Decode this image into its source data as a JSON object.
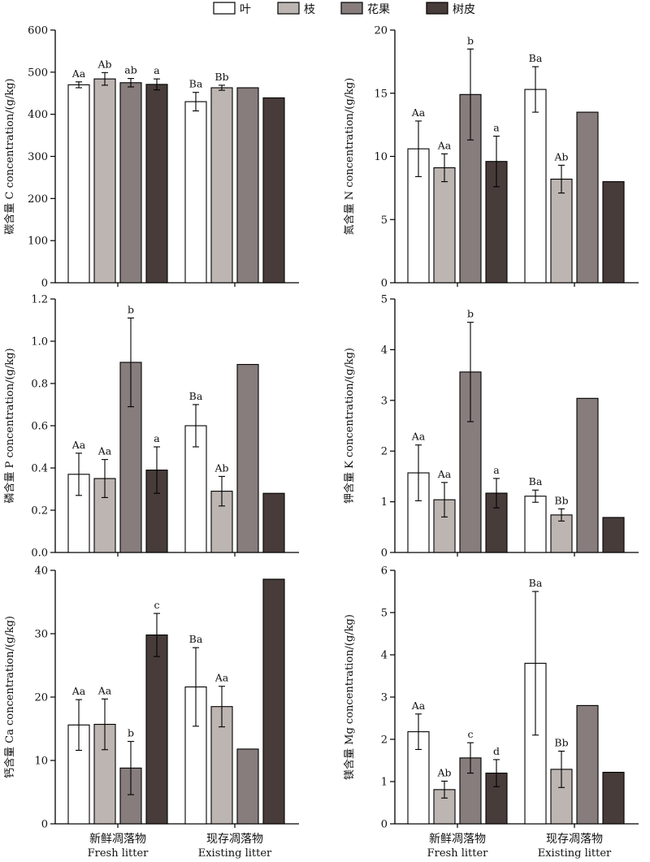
{
  "legend": [
    {
      "label": "叶",
      "color": "#ffffff"
    },
    {
      "label": "枝",
      "color": "#bdb5b1"
    },
    {
      "label": "花果",
      "color": "#867d7c"
    },
    {
      "label": "树皮",
      "color": "#473c3a"
    }
  ],
  "chart_data": [
    {
      "type": "bar",
      "ylabel": "碳含量 C concentration/(g/kg)",
      "ylim": [
        0,
        600
      ],
      "yticks": [
        "0",
        "100",
        "200",
        "300",
        "400",
        "500",
        "600"
      ],
      "categories": [
        {
          "cn": "新鲜凋落物",
          "en": "Fresh litter"
        },
        {
          "cn": "现存凋落物",
          "en": "Existing litter"
        }
      ],
      "series": [
        {
          "name": "叶",
          "values": [
            470,
            430
          ],
          "errors": [
            7,
            22
          ],
          "labels": [
            "Aa",
            "Ba"
          ]
        },
        {
          "name": "枝",
          "values": [
            484,
            463
          ],
          "errors": [
            15,
            6
          ],
          "labels": [
            "Ab",
            "Bb"
          ]
        },
        {
          "name": "花果",
          "values": [
            475,
            463
          ],
          "errors": [
            10,
            0
          ],
          "labels": [
            "ab",
            ""
          ]
        },
        {
          "name": "树皮",
          "values": [
            471,
            439
          ],
          "errors": [
            13,
            0
          ],
          "labels": [
            "a",
            ""
          ]
        }
      ]
    },
    {
      "type": "bar",
      "ylabel": "氮含量 N concentration/(g/kg)",
      "ylim": [
        0,
        20
      ],
      "yticks": [
        "0",
        "5",
        "10",
        "15",
        "20"
      ],
      "categories": [
        {
          "cn": "新鲜凋落物",
          "en": "Fresh litter"
        },
        {
          "cn": "现存凋落物",
          "en": "Existing litter"
        }
      ],
      "series": [
        {
          "name": "叶",
          "values": [
            10.6,
            15.3
          ],
          "errors": [
            2.2,
            1.8
          ],
          "labels": [
            "Aa",
            "Ba"
          ]
        },
        {
          "name": "枝",
          "values": [
            9.1,
            8.2
          ],
          "errors": [
            1.1,
            1.1
          ],
          "labels": [
            "Aa",
            "Ab"
          ]
        },
        {
          "name": "花果",
          "values": [
            14.9,
            13.5
          ],
          "errors": [
            3.6,
            0
          ],
          "labels": [
            "b",
            ""
          ]
        },
        {
          "name": "树皮",
          "values": [
            9.6,
            8.0
          ],
          "errors": [
            2.0,
            0
          ],
          "labels": [
            "a",
            ""
          ]
        }
      ]
    },
    {
      "type": "bar",
      "ylabel": "磷含量 P concentration/(g/kg)",
      "ylim": [
        0,
        1.2
      ],
      "yticks": [
        "0.0",
        "0.2",
        "0.4",
        "0.6",
        "0.8",
        "1.0",
        "1.2"
      ],
      "categories": [
        {
          "cn": "新鲜凋落物",
          "en": "Fresh litter"
        },
        {
          "cn": "现存凋落物",
          "en": "Existing litter"
        }
      ],
      "series": [
        {
          "name": "叶",
          "values": [
            0.37,
            0.6
          ],
          "errors": [
            0.1,
            0.1
          ],
          "labels": [
            "Aa",
            "Ba"
          ]
        },
        {
          "name": "枝",
          "values": [
            0.35,
            0.29
          ],
          "errors": [
            0.09,
            0.07
          ],
          "labels": [
            "Aa",
            "Ab"
          ]
        },
        {
          "name": "花果",
          "values": [
            0.9,
            0.89
          ],
          "errors": [
            0.21,
            0
          ],
          "labels": [
            "b",
            ""
          ]
        },
        {
          "name": "树皮",
          "values": [
            0.39,
            0.28
          ],
          "errors": [
            0.11,
            0
          ],
          "labels": [
            "a",
            ""
          ]
        }
      ]
    },
    {
      "type": "bar",
      "ylabel": "钾含量 K concentration/(g/kg)",
      "ylim": [
        0,
        5
      ],
      "yticks": [
        "0",
        "1",
        "2",
        "3",
        "4",
        "5"
      ],
      "categories": [
        {
          "cn": "新鲜凋落物",
          "en": "Fresh litter"
        },
        {
          "cn": "现存凋落物",
          "en": "Existing litter"
        }
      ],
      "series": [
        {
          "name": "叶",
          "values": [
            1.57,
            1.11
          ],
          "errors": [
            0.55,
            0.12
          ],
          "labels": [
            "Aa",
            "Ba"
          ]
        },
        {
          "name": "枝",
          "values": [
            1.04,
            0.74
          ],
          "errors": [
            0.34,
            0.12
          ],
          "labels": [
            "Aa",
            "Bb"
          ]
        },
        {
          "name": "花果",
          "values": [
            3.56,
            3.04
          ],
          "errors": [
            0.98,
            0
          ],
          "labels": [
            "b",
            ""
          ]
        },
        {
          "name": "树皮",
          "values": [
            1.17,
            0.69
          ],
          "errors": [
            0.29,
            0
          ],
          "labels": [
            "a",
            ""
          ]
        }
      ]
    },
    {
      "type": "bar",
      "ylabel": "钙含量 Ca concentration/(g/kg)",
      "ylim": [
        0,
        40
      ],
      "yticks": [
        "0",
        "10",
        "20",
        "30",
        "40"
      ],
      "categories": [
        {
          "cn": "新鲜凋落物",
          "en": "Fresh litter"
        },
        {
          "cn": "现存凋落物",
          "en": "Existing litter"
        }
      ],
      "series": [
        {
          "name": "叶",
          "values": [
            15.6,
            21.6
          ],
          "errors": [
            4.0,
            6.2
          ],
          "labels": [
            "Aa",
            "Ba"
          ]
        },
        {
          "name": "枝",
          "values": [
            15.7,
            18.5
          ],
          "errors": [
            4.0,
            3.2
          ],
          "labels": [
            "Aa",
            "Aa"
          ]
        },
        {
          "name": "花果",
          "values": [
            8.8,
            11.8
          ],
          "errors": [
            4.2,
            0
          ],
          "labels": [
            "b",
            ""
          ]
        },
        {
          "name": "树皮",
          "values": [
            29.8,
            38.6
          ],
          "errors": [
            3.4,
            0
          ],
          "labels": [
            "c",
            ""
          ]
        }
      ]
    },
    {
      "type": "bar",
      "ylabel": "镁含量 Mg concentration/(g/kg)",
      "ylim": [
        0,
        6
      ],
      "yticks": [
        "0",
        "1",
        "2",
        "3",
        "4",
        "5",
        "6"
      ],
      "categories": [
        {
          "cn": "新鲜凋落物",
          "en": "Fresh litter"
        },
        {
          "cn": "现存凋落物",
          "en": "Existing litter"
        }
      ],
      "series": [
        {
          "name": "叶",
          "values": [
            2.18,
            3.8
          ],
          "errors": [
            0.42,
            1.7
          ],
          "labels": [
            "Aa",
            "Ba"
          ]
        },
        {
          "name": "枝",
          "values": [
            0.81,
            1.29
          ],
          "errors": [
            0.2,
            0.43
          ],
          "labels": [
            "Ab",
            "Bb"
          ]
        },
        {
          "name": "花果",
          "values": [
            1.56,
            2.8
          ],
          "errors": [
            0.36,
            0
          ],
          "labels": [
            "c",
            ""
          ]
        },
        {
          "name": "树皮",
          "values": [
            1.2,
            1.22
          ],
          "errors": [
            0.32,
            0
          ],
          "labels": [
            "d",
            ""
          ]
        }
      ]
    }
  ]
}
